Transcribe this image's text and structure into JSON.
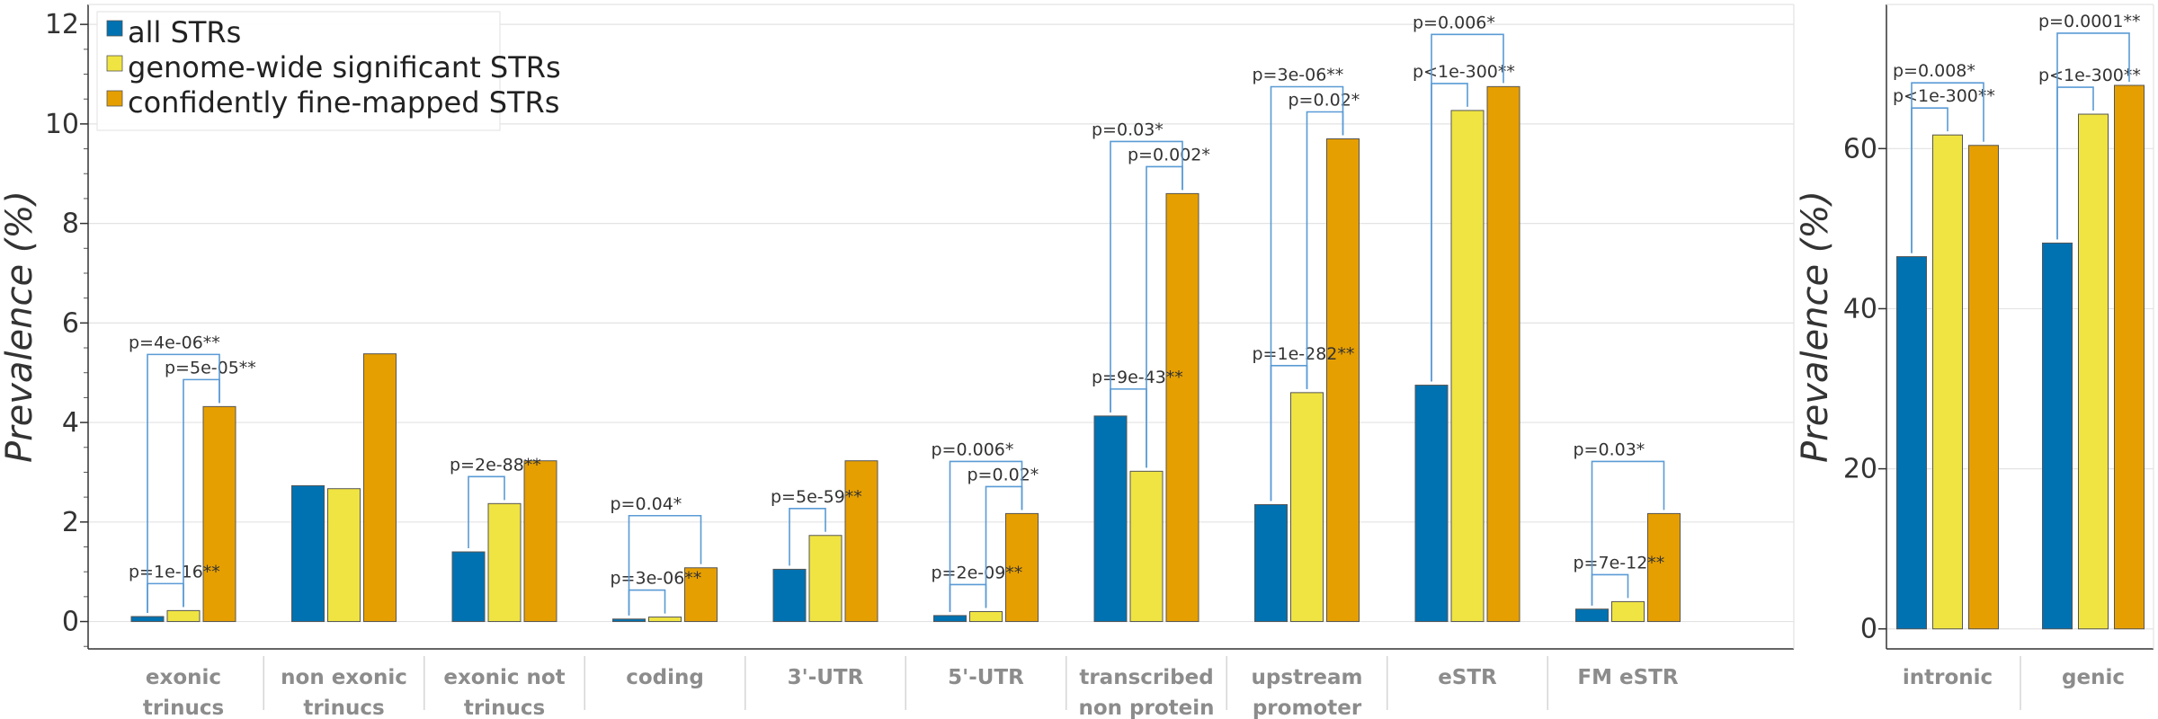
{
  "legend": {
    "position": "top-left",
    "entries": [
      {
        "label": "all STRs",
        "color": "#0072b2"
      },
      {
        "label": "genome-wide significant STRs",
        "color": "#f0e442"
      },
      {
        "label": "confidently fine-mapped STRs",
        "color": "#e69f00"
      }
    ]
  },
  "chart_data": [
    {
      "type": "bar",
      "ylabel": "Prevalence (%)",
      "xlabel": "",
      "ylim": [
        -0.55,
        12.4
      ],
      "yticks": [
        0,
        2,
        4,
        6,
        8,
        10,
        12
      ],
      "grid": true,
      "categories": [
        [
          "exonic",
          "trinucs"
        ],
        [
          "non exonic",
          "trinucs"
        ],
        [
          "exonic not",
          "trinucs"
        ],
        [
          "coding"
        ],
        [
          "3'-UTR"
        ],
        [
          "5'-UTR"
        ],
        [
          "transcribed",
          "non protein"
        ],
        [
          "upstream",
          "promoter"
        ],
        [
          "eSTR"
        ],
        [
          "FM eSTR"
        ]
      ],
      "series": [
        {
          "name": "all STRs",
          "color": "#0072b2",
          "values": [
            0.1,
            2.73,
            1.4,
            0.05,
            1.05,
            0.12,
            4.13,
            2.35,
            4.75,
            0.25
          ]
        },
        {
          "name": "genome-wide significant STRs",
          "color": "#f0e442",
          "values": [
            0.22,
            2.67,
            2.37,
            0.09,
            1.73,
            0.2,
            3.02,
            4.6,
            10.27,
            0.4
          ]
        },
        {
          "name": "confidently fine-mapped STRs",
          "color": "#e69f00",
          "values": [
            4.32,
            5.38,
            3.23,
            1.08,
            3.23,
            2.17,
            8.6,
            9.7,
            10.75,
            2.17
          ]
        }
      ],
      "annotations": [
        {
          "category": 0,
          "from": 0,
          "to": 1,
          "text": "p=1e-16**"
        },
        {
          "category": 0,
          "from": 1,
          "to": 2,
          "text": "p=5e-05**"
        },
        {
          "category": 0,
          "from": 0,
          "to": 2,
          "text": "p=4e-06**"
        },
        {
          "category": 2,
          "from": 0,
          "to": 1,
          "text": "p=2e-88**"
        },
        {
          "category": 3,
          "from": 0,
          "to": 1,
          "text": "p=3e-06**"
        },
        {
          "category": 3,
          "from": 0,
          "to": 2,
          "text": "p=0.04*"
        },
        {
          "category": 4,
          "from": 0,
          "to": 1,
          "text": "p=5e-59**"
        },
        {
          "category": 5,
          "from": 0,
          "to": 1,
          "text": "p=2e-09**"
        },
        {
          "category": 5,
          "from": 1,
          "to": 2,
          "text": "p=0.02*"
        },
        {
          "category": 5,
          "from": 0,
          "to": 2,
          "text": "p=0.006*"
        },
        {
          "category": 6,
          "from": 0,
          "to": 1,
          "text": "p=9e-43**"
        },
        {
          "category": 6,
          "from": 1,
          "to": 2,
          "text": "p=0.002*"
        },
        {
          "category": 6,
          "from": 0,
          "to": 2,
          "text": "p=0.03*"
        },
        {
          "category": 7,
          "from": 0,
          "to": 1,
          "text": "p=1e-282**"
        },
        {
          "category": 7,
          "from": 1,
          "to": 2,
          "text": "p=0.02*"
        },
        {
          "category": 7,
          "from": 0,
          "to": 2,
          "text": "p=3e-06**"
        },
        {
          "category": 8,
          "from": 0,
          "to": 1,
          "text": "p<1e-300**"
        },
        {
          "category": 8,
          "from": 0,
          "to": 2,
          "text": "p=0.006*"
        },
        {
          "category": 9,
          "from": 0,
          "to": 1,
          "text": "p=7e-12**"
        },
        {
          "category": 9,
          "from": 0,
          "to": 2,
          "text": "p=0.03*"
        }
      ]
    },
    {
      "type": "bar",
      "ylabel": "Prevalence (%)",
      "xlabel": "",
      "ylim": [
        -2.5,
        78
      ],
      "yticks": [
        0,
        20,
        40,
        60
      ],
      "grid": true,
      "categories": [
        [
          "intronic"
        ],
        [
          "genic"
        ]
      ],
      "series": [
        {
          "name": "all STRs",
          "color": "#0072b2",
          "values": [
            46.5,
            48.2
          ]
        },
        {
          "name": "genome-wide significant STRs",
          "color": "#f0e442",
          "values": [
            61.7,
            64.3
          ]
        },
        {
          "name": "confidently fine-mapped STRs",
          "color": "#e69f00",
          "values": [
            60.4,
            67.9
          ]
        }
      ],
      "annotations": [
        {
          "category": 0,
          "from": 0,
          "to": 1,
          "text": "p<1e-300**"
        },
        {
          "category": 0,
          "from": 0,
          "to": 2,
          "text": "p=0.008*"
        },
        {
          "category": 1,
          "from": 0,
          "to": 1,
          "text": "p<1e-300**"
        },
        {
          "category": 1,
          "from": 0,
          "to": 2,
          "text": "p=0.0001**"
        }
      ]
    }
  ]
}
